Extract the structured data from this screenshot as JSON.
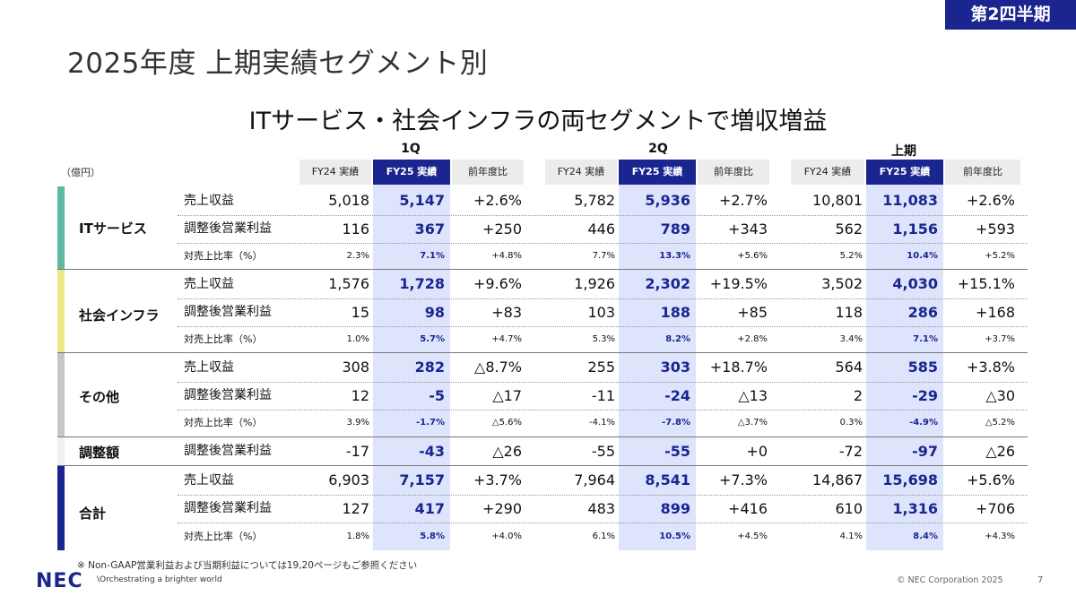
{
  "badge": "第2四半期",
  "title": "2025年度 上期実績セグメント別",
  "subtitle": "ITサービス・社会インフラの両セグメントで増収増益",
  "unit": "（億円）",
  "periods": [
    "1Q",
    "2Q",
    "上期"
  ],
  "headers": [
    "FY24 実績",
    "FY25 実績",
    "前年度比"
  ],
  "colors": {
    "it": "#5fb8a0",
    "infra": "#eee68a",
    "other": "#c6c6c6",
    "adjust": "#f0f0f0",
    "total": "#1a2590"
  },
  "segments": {
    "it": "ITサービス",
    "infra": "社会インフラ",
    "other": "その他",
    "adjust": "調整額",
    "total": "合計"
  },
  "labels": {
    "revenue": "売上収益",
    "op_profit": "調整後営業利益",
    "margin": "対売上比率（%）"
  },
  "rows": [
    {
      "v": [
        "5,018",
        "5,147",
        "+2.6%",
        "5,782",
        "5,936",
        "+2.7%",
        "10,801",
        "11,083",
        "+2.6%"
      ]
    },
    {
      "v": [
        "116",
        "367",
        "+250",
        "446",
        "789",
        "+343",
        "562",
        "1,156",
        "+593"
      ]
    },
    {
      "v": [
        "2.3%",
        "7.1%",
        "+4.8%",
        "7.7%",
        "13.3%",
        "+5.6%",
        "5.2%",
        "10.4%",
        "+5.2%"
      ]
    },
    {
      "v": [
        "1,576",
        "1,728",
        "+9.6%",
        "1,926",
        "2,302",
        "+19.5%",
        "3,502",
        "4,030",
        "+15.1%"
      ]
    },
    {
      "v": [
        "15",
        "98",
        "+83",
        "103",
        "188",
        "+85",
        "118",
        "286",
        "+168"
      ]
    },
    {
      "v": [
        "1.0%",
        "5.7%",
        "+4.7%",
        "5.3%",
        "8.2%",
        "+2.8%",
        "3.4%",
        "7.1%",
        "+3.7%"
      ]
    },
    {
      "v": [
        "308",
        "282",
        "△8.7%",
        "255",
        "303",
        "+18.7%",
        "564",
        "585",
        "+3.8%"
      ]
    },
    {
      "v": [
        "12",
        "-5",
        "△17",
        "-11",
        "-24",
        "△13",
        "2",
        "-29",
        "△30"
      ]
    },
    {
      "v": [
        "3.9%",
        "-1.7%",
        "△5.6%",
        "-4.1%",
        "-7.8%",
        "△3.7%",
        "0.3%",
        "-4.9%",
        "△5.2%"
      ]
    },
    {
      "v": [
        "-17",
        "-43",
        "△26",
        "-55",
        "-55",
        "+0",
        "-72",
        "-97",
        "△26"
      ]
    },
    {
      "v": [
        "6,903",
        "7,157",
        "+3.7%",
        "7,964",
        "8,541",
        "+7.3%",
        "14,867",
        "15,698",
        "+5.6%"
      ]
    },
    {
      "v": [
        "127",
        "417",
        "+290",
        "483",
        "899",
        "+416",
        "610",
        "1,316",
        "+706"
      ]
    },
    {
      "v": [
        "1.8%",
        "5.8%",
        "+4.0%",
        "6.1%",
        "10.5%",
        "+4.5%",
        "4.1%",
        "8.4%",
        "+4.3%"
      ]
    }
  ],
  "note": "※ Non-GAAP営業利益および当期利益については19,20ページもご参照ください",
  "logo": "NEC",
  "tagline": "\\Orchestrating a brighter world",
  "copyright": "© NEC Corporation 2025",
  "page_number": "7"
}
